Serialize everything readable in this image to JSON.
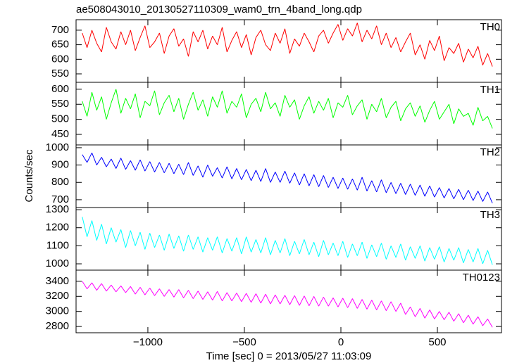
{
  "chart_data": {
    "type": "line",
    "title": "ae508043010_20130527110309_wam0_trn_4band_long.qdp",
    "xlabel": "Time [sec] 0 = 2013/05/27 11:03:09",
    "ylabel": "Counts/sec",
    "xlim": [
      -1372,
      832
    ],
    "xticks": [
      {
        "value": -1000,
        "label": "−1000"
      },
      {
        "value": -500,
        "label": "−500"
      },
      0,
      500
    ],
    "x": [
      -1340,
      -1315,
      -1290,
      -1265,
      -1240,
      -1215,
      -1190,
      -1165,
      -1140,
      -1115,
      -1090,
      -1065,
      -1040,
      -1015,
      -990,
      -965,
      -940,
      -915,
      -890,
      -865,
      -840,
      -815,
      -790,
      -765,
      -740,
      -715,
      -690,
      -665,
      -640,
      -615,
      -590,
      -565,
      -540,
      -515,
      -490,
      -465,
      -440,
      -415,
      -390,
      -365,
      -340,
      -315,
      -290,
      -265,
      -240,
      -215,
      -190,
      -165,
      -140,
      -115,
      -90,
      -65,
      -40,
      -15,
      10,
      35,
      60,
      85,
      110,
      135,
      160,
      185,
      210,
      235,
      260,
      285,
      310,
      335,
      360,
      385,
      410,
      435,
      460,
      485,
      510,
      535,
      560,
      585,
      610,
      635,
      660,
      685,
      710,
      735,
      760,
      785
    ],
    "panels": [
      {
        "name": "TH0",
        "color": "#ff0000",
        "ylim": [
          521,
          736
        ],
        "yticks": [
          550,
          600,
          650,
          700
        ],
        "values": [
          690,
          640,
          700,
          655,
          625,
          710,
          660,
          635,
          695,
          650,
          700,
          630,
          675,
          715,
          640,
          660,
          690,
          620,
          680,
          705,
          645,
          670,
          610,
          695,
          660,
          700,
          635,
          680,
          650,
          710,
          625,
          665,
          695,
          640,
          685,
          615,
          675,
          700,
          650,
          630,
          690,
          655,
          705,
          620,
          670,
          645,
          690,
          660,
          625,
          680,
          700,
          655,
          690,
          720,
          665,
          705,
          680,
          725,
          660,
          700,
          670,
          715,
          650,
          690,
          640,
          675,
          625,
          660,
          690,
          615,
          650,
          600,
          665,
          630,
          680,
          595,
          640,
          620,
          655,
          590,
          635,
          605,
          645,
          580,
          620,
          575
        ]
      },
      {
        "name": "TH1",
        "color": "#00ff00",
        "ylim": [
          415,
          623
        ],
        "yticks": [
          450,
          500,
          550,
          600
        ],
        "values": [
          560,
          510,
          590,
          530,
          575,
          500,
          555,
          600,
          520,
          570,
          535,
          585,
          505,
          560,
          545,
          595,
          515,
          555,
          580,
          525,
          570,
          500,
          550,
          590,
          530,
          565,
          510,
          575,
          540,
          595,
          520,
          560,
          540,
          585,
          505,
          550,
          570,
          525,
          590,
          535,
          555,
          510,
          580,
          540,
          565,
          500,
          545,
          575,
          520,
          560,
          530,
          570,
          505,
          555,
          540,
          580,
          515,
          545,
          565,
          500,
          550,
          525,
          570,
          505,
          540,
          560,
          495,
          535,
          555,
          510,
          545,
          490,
          530,
          560,
          500,
          525,
          550,
          485,
          535,
          510,
          520,
          480,
          540,
          495,
          510,
          470
        ]
      },
      {
        "name": "TH2",
        "color": "#0000ff",
        "ylim": [
          655,
          1016
        ],
        "yticks": [
          700,
          800,
          900,
          1000
        ],
        "values": [
          960,
          915,
          970,
          900,
          945,
          890,
          935,
          880,
          940,
          875,
          925,
          870,
          930,
          865,
          920,
          860,
          915,
          855,
          910,
          850,
          905,
          845,
          915,
          840,
          895,
          830,
          900,
          835,
          885,
          825,
          890,
          820,
          880,
          815,
          875,
          810,
          870,
          805,
          880,
          800,
          860,
          800,
          865,
          795,
          855,
          785,
          850,
          780,
          845,
          775,
          840,
          770,
          830,
          765,
          825,
          760,
          820,
          755,
          830,
          750,
          810,
          745,
          815,
          740,
          800,
          735,
          795,
          730,
          790,
          725,
          785,
          720,
          780,
          715,
          770,
          710,
          765,
          705,
          760,
          700,
          755,
          695,
          750,
          690,
          745,
          680
        ]
      },
      {
        "name": "TH3",
        "color": "#00ffff",
        "ylim": [
          965,
          1312
        ],
        "yticks": [
          1000,
          1100,
          1200,
          1300
        ],
        "values": [
          1260,
          1150,
          1240,
          1130,
          1220,
          1110,
          1200,
          1120,
          1190,
          1090,
          1185,
          1100,
          1175,
          1080,
          1170,
          1090,
          1160,
          1075,
          1165,
          1085,
          1155,
          1070,
          1160,
          1080,
          1150,
          1065,
          1145,
          1075,
          1150,
          1060,
          1140,
          1070,
          1145,
          1055,
          1150,
          1065,
          1135,
          1060,
          1145,
          1050,
          1130,
          1060,
          1140,
          1045,
          1125,
          1055,
          1135,
          1050,
          1120,
          1040,
          1130,
          1050,
          1115,
          1045,
          1125,
          1035,
          1110,
          1045,
          1120,
          1030,
          1105,
          1040,
          1115,
          1025,
          1100,
          1035,
          1110,
          1020,
          1095,
          1030,
          1100,
          1015,
          1090,
          1025,
          1095,
          1010,
          1085,
          1020,
          1090,
          1005,
          1080,
          1010,
          1085,
          1000,
          1075,
          995
        ]
      },
      {
        "name": "TH0123",
        "color": "#ff00ff",
        "ylim": [
          2717,
          3548
        ],
        "yticks": [
          2800,
          3000,
          3200,
          3400
        ],
        "values": [
          3400,
          3300,
          3380,
          3280,
          3370,
          3270,
          3350,
          3260,
          3340,
          3250,
          3330,
          3230,
          3320,
          3220,
          3310,
          3210,
          3300,
          3200,
          3290,
          3190,
          3290,
          3180,
          3280,
          3170,
          3270,
          3160,
          3260,
          3150,
          3265,
          3140,
          3250,
          3140,
          3245,
          3130,
          3240,
          3120,
          3235,
          3110,
          3230,
          3100,
          3220,
          3100,
          3215,
          3090,
          3210,
          3080,
          3205,
          3075,
          3200,
          3070,
          3190,
          3070,
          3180,
          3060,
          3175,
          3050,
          3170,
          3040,
          3160,
          3030,
          3150,
          3020,
          3140,
          3010,
          3130,
          3000,
          3110,
          2960,
          3060,
          2930,
          3040,
          2910,
          3020,
          2900,
          3000,
          2890,
          2990,
          2870,
          2970,
          2850,
          2950,
          2830,
          2930,
          2810,
          2900,
          2790
        ]
      }
    ]
  }
}
